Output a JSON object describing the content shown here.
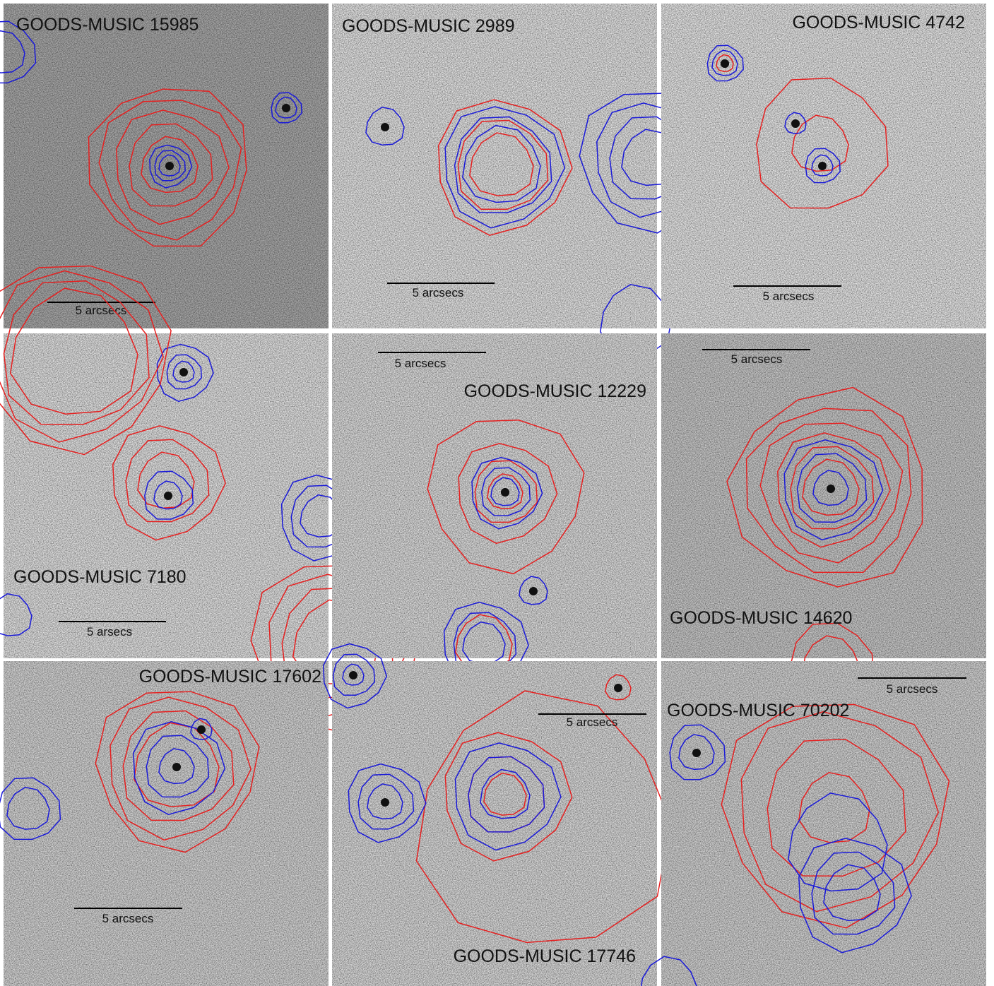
{
  "panels": [
    {
      "label": "GOODS-MUSIC 15985",
      "scale_bar_label": "5 arcsecs"
    },
    {
      "label": "GOODS-MUSIC 2989",
      "scale_bar_label": "5 arcsecs"
    },
    {
      "label": "GOODS-MUSIC 4742",
      "scale_bar_label": "5 arcsecs"
    },
    {
      "label": "GOODS-MUSIC 7180",
      "scale_bar_label": "5 arsecs"
    },
    {
      "label": "GOODS-MUSIC 12229",
      "scale_bar_label": "5 arcsecs"
    },
    {
      "label": "GOODS-MUSIC 14620",
      "scale_bar_label": "5 arcsecs"
    },
    {
      "label": "GOODS-MUSIC 17602",
      "scale_bar_label": "5 arcsecs"
    },
    {
      "label": "GOODS-MUSIC 17746",
      "scale_bar_label": "5 arcsecs"
    },
    {
      "label": "GOODS-MUSIC 70202",
      "scale_bar_label": "5 arcsecs"
    }
  ]
}
